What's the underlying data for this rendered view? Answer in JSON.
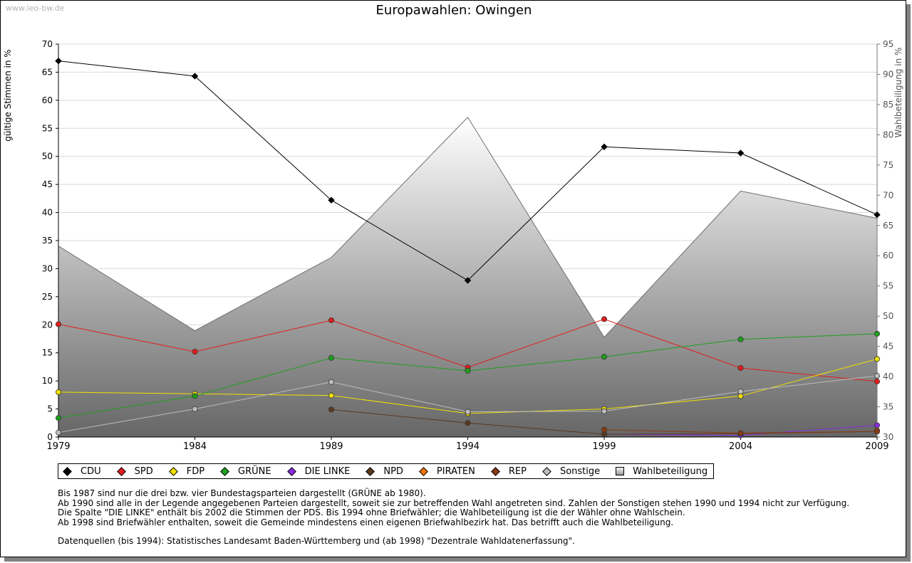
{
  "watermark": "www.leo-bw.de",
  "chart_data": {
    "type": "line",
    "title": "Europawahlen: Owingen",
    "ylabel": "gültige Stimmen in %",
    "ylabel_right": "Wahlbeteiligung in %",
    "x": [
      "1979",
      "1984",
      "1989",
      "1994",
      "1999",
      "2004",
      "2009"
    ],
    "ylim": [
      0,
      70
    ],
    "yticks": [
      0,
      5,
      10,
      15,
      20,
      25,
      30,
      35,
      40,
      45,
      50,
      55,
      60,
      65,
      70
    ],
    "ylim_right": [
      30,
      95
    ],
    "yticks_right": [
      30,
      35,
      40,
      45,
      50,
      55,
      60,
      65,
      70,
      75,
      80,
      85,
      90,
      95
    ],
    "grid": true,
    "legend_position": "bottom",
    "series": [
      {
        "name": "CDU",
        "color": "#000000",
        "values": [
          67.0,
          64.3,
          42.2,
          27.9,
          51.7,
          50.6,
          39.6
        ]
      },
      {
        "name": "SPD",
        "color": "#e31c1c",
        "values": [
          20.1,
          15.2,
          20.8,
          12.4,
          21.0,
          12.3,
          9.9
        ]
      },
      {
        "name": "FDP",
        "color": "#f0e000",
        "values": [
          8.0,
          7.7,
          7.4,
          4.2,
          5.0,
          7.3,
          13.9
        ]
      },
      {
        "name": "GRÜNE",
        "color": "#1ea01e",
        "values": [
          3.4,
          7.3,
          14.1,
          11.8,
          14.3,
          17.4,
          18.4
        ]
      },
      {
        "name": "DIE LINKE",
        "color": "#8a2be2",
        "values": [
          null,
          null,
          null,
          null,
          0.5,
          0.3,
          2.1
        ]
      },
      {
        "name": "NPD",
        "color": "#5a3a20",
        "values": [
          null,
          null,
          4.9,
          2.5,
          0.5,
          0.6,
          1.0
        ]
      },
      {
        "name": "PIRATEN",
        "color": "#f07800",
        "values": [
          null,
          null,
          null,
          null,
          null,
          null,
          1.2
        ]
      },
      {
        "name": "REP",
        "color": "#8b3a10",
        "values": [
          null,
          null,
          null,
          null,
          1.3,
          0.7,
          1.0
        ]
      },
      {
        "name": "Sonstige",
        "color": "#bdbdbd",
        "values": [
          0.8,
          5.0,
          9.8,
          4.5,
          4.6,
          8.1,
          10.9
        ]
      }
    ],
    "area_series": {
      "name": "Wahlbeteiligung",
      "axis": "right",
      "values": [
        61.6,
        47.6,
        59.7,
        82.9,
        46.5,
        70.7,
        66.2
      ]
    }
  },
  "legend": [
    {
      "label": "CDU",
      "color": "#000000",
      "shape": "circle"
    },
    {
      "label": "SPD",
      "color": "#e31c1c",
      "shape": "circle"
    },
    {
      "label": "FDP",
      "color": "#f0e000",
      "shape": "circle"
    },
    {
      "label": "GRÜNE",
      "color": "#1ea01e",
      "shape": "circle"
    },
    {
      "label": "DIE LINKE",
      "color": "#8a2be2",
      "shape": "circle"
    },
    {
      "label": "NPD",
      "color": "#5a3a20",
      "shape": "circle"
    },
    {
      "label": "PIRATEN",
      "color": "#f07800",
      "shape": "circle"
    },
    {
      "label": "REP",
      "color": "#8b3a10",
      "shape": "circle"
    },
    {
      "label": "Sonstige",
      "color": "#bdbdbd",
      "shape": "circle"
    },
    {
      "label": "Wahlbeteiligung",
      "color": "#c8c8c8",
      "shape": "square"
    }
  ],
  "notes": [
    "Bis 1987 sind nur die drei bzw. vier Bundestagsparteien dargestellt (GRÜNE ab 1980).",
    "Ab 1990 sind alle in der Legende angegebenen Parteien dargestellt, soweit sie zur betreffenden Wahl angetreten sind. Zahlen der Sonstigen stehen 1990 und 1994 nicht zur Verfügung.",
    "Die Spalte \"DIE LINKE\" enthält bis 2002 die Stimmen der PDS. Bis 1994 ohne Briefwähler; die Wahlbeteiligung ist die der Wähler ohne Wahlschein.",
    "Ab 1998 sind Briefwähler enthalten, soweit die Gemeinde mindestens einen eigenen Briefwahlbezirk hat. Das betrifft auch die Wahlbeteiligung."
  ],
  "sources": "Datenquellen (bis 1994): Statistisches Landesamt Baden-Württemberg und (ab 1998) \"Dezentrale Wahldatenerfassung\"."
}
